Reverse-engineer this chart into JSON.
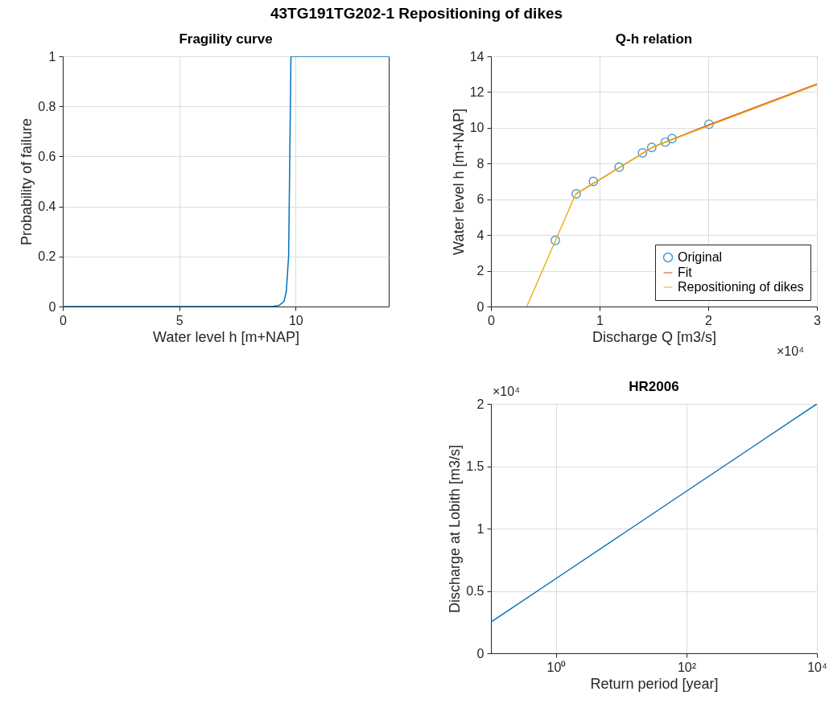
{
  "chart_data": [
    {
      "type": "line",
      "title": "Fragility curve",
      "xlabel": "Water level h [m+NAP]",
      "ylabel": "Probability of failure",
      "annotations": [
        "43TG191TG202-1 Repositioning of dikes"
      ],
      "x": [
        0,
        9.0,
        9.3,
        9.5,
        9.6,
        9.7,
        9.75,
        9.8,
        14
      ],
      "values": [
        0,
        0,
        0.005,
        0.02,
        0.06,
        0.2,
        0.6,
        1,
        1
      ],
      "color": "#0072bd",
      "xlim": [
        0,
        14
      ],
      "ylim": [
        0,
        1
      ],
      "xticks": [
        0,
        5,
        10
      ],
      "yticks": [
        0,
        0.2,
        0.4,
        0.6,
        0.8,
        1
      ],
      "grid": true
    },
    {
      "type": "line",
      "title": "Q-h relation",
      "xlabel": "Discharge Q [m3/s]",
      "ylabel": "Water level h [m+NAP]",
      "annotations": [
        "×10⁴"
      ],
      "series": [
        {
          "name": "Original",
          "type": "scatter",
          "marker": "circle",
          "color": "#0072bd",
          "x": [
            0.593,
            0.785,
            0.943,
            1.18,
            1.395,
            1.48,
            1.605,
            1.667,
            2.007
          ],
          "values": [
            3.7,
            6.3,
            7.0,
            7.8,
            8.6,
            8.9,
            9.2,
            9.4,
            10.2
          ]
        },
        {
          "name": "Fit",
          "type": "line",
          "color": "#d95319",
          "x": [
            0.78,
            1.0,
            1.5,
            2.0,
            2.5,
            3.0
          ],
          "values": [
            6.3,
            7.1,
            8.95,
            10.15,
            11.3,
            12.45
          ]
        },
        {
          "name": "Repositioning of dikes",
          "type": "line",
          "color": "#edb120",
          "x": [
            0.33,
            0.78,
            1.0,
            1.5,
            2.0,
            2.5,
            3.0
          ],
          "values": [
            0,
            6.3,
            7.1,
            8.95,
            10.1,
            11.25,
            12.4
          ]
        }
      ],
      "xlim": [
        0,
        3
      ],
      "ylim": [
        0,
        14
      ],
      "xticks": [
        0,
        1,
        2,
        3
      ],
      "yticks": [
        0,
        2,
        4,
        6,
        8,
        10,
        12,
        14
      ],
      "grid": true,
      "legend": "bottom right"
    },
    {
      "type": "line",
      "title": "HR2006",
      "xlabel": "Return period [year]",
      "ylabel": "Discharge at Lobith [m3/s]",
      "annotations": [
        "×10⁴"
      ],
      "x": [
        0.1,
        1,
        10,
        100,
        1000,
        10000
      ],
      "values": [
        0.25,
        0.6,
        0.95,
        1.3,
        1.65,
        2.0
      ],
      "color": "#0072bd",
      "log": "x",
      "xlim": [
        0.1,
        10000
      ],
      "ylim": [
        0,
        2
      ],
      "xticks": [
        {
          "value": 1,
          "label": "10⁰"
        },
        {
          "value": 100,
          "label": "10²"
        },
        {
          "value": 10000,
          "label": "10⁴"
        }
      ],
      "yticks": [
        0,
        0.5,
        1,
        1.5,
        2
      ],
      "grid": true
    }
  ]
}
